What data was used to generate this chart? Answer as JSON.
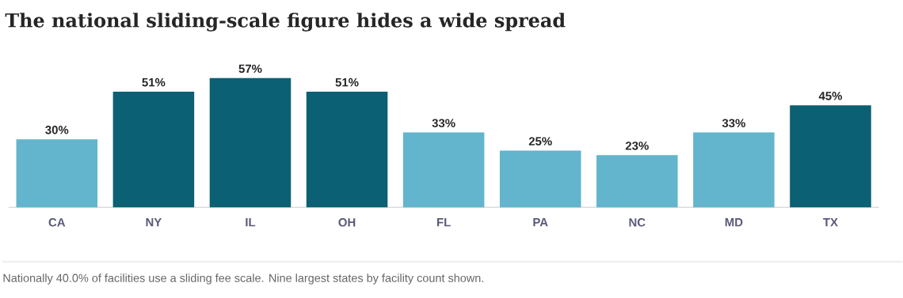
{
  "chart_data": {
    "type": "bar",
    "title": "The national sliding-scale figure hides a wide spread",
    "categories": [
      "CA",
      "NY",
      "IL",
      "OH",
      "FL",
      "PA",
      "NC",
      "MD",
      "TX"
    ],
    "values": [
      30,
      51,
      57,
      51,
      33,
      25,
      23,
      33,
      45
    ],
    "value_labels": [
      "30%",
      "51%",
      "57%",
      "51%",
      "33%",
      "25%",
      "23%",
      "33%",
      "45%"
    ],
    "colors": [
      "#62b5cc",
      "#0b6073",
      "#0b6073",
      "#0b6073",
      "#62b5cc",
      "#62b5cc",
      "#62b5cc",
      "#62b5cc",
      "#0b6073"
    ],
    "annotations": [
      "Nationally 40.0% of facilities use a sliding fee scale. Nine largest states by facility count shown."
    ]
  }
}
